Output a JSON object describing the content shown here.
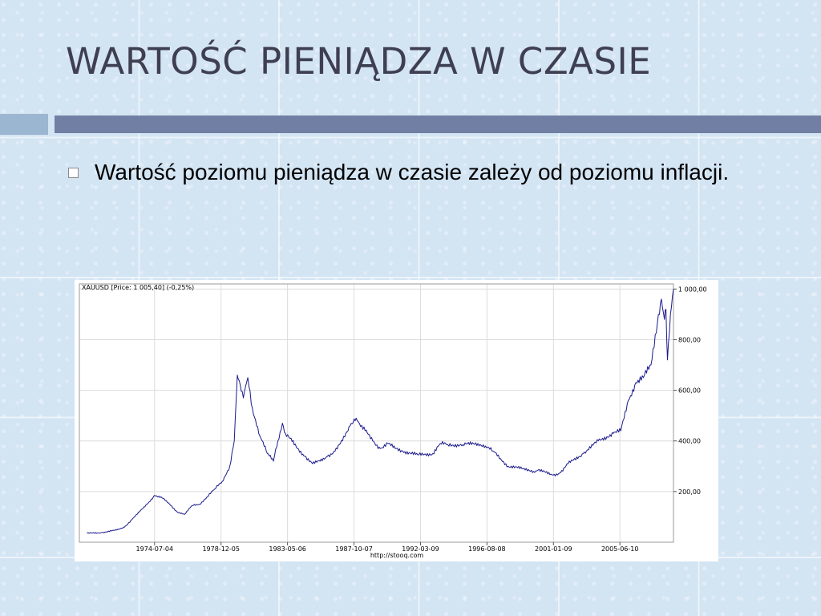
{
  "slide": {
    "title": "WARTOŚĆ PIENIĄDZA W CZASIE",
    "bullet": "Wartość poziomu pieniądza w czasie zależy od poziomu inflacji."
  },
  "colors": {
    "title": "#3f3f52",
    "accent_bar": "#707fa3",
    "accent_bar_light": "#9bb6d0",
    "line": "#1a1a8c",
    "grid": "#dcdcdc"
  },
  "chart_data": {
    "type": "line",
    "legend": "XAUUSD [Price: 1 005,40] (-0,25%)",
    "source": "http://stooq.com",
    "grid": true,
    "y_axis_side": "right",
    "ylim": [
      0,
      1020
    ],
    "yticks": [
      200,
      400,
      600,
      800,
      1000
    ],
    "ytick_labels": [
      "200,00",
      "400,00",
      "600,00",
      "800,00",
      "1 000,00"
    ],
    "xlim": [
      1969.5,
      2009.0
    ],
    "xticks": [
      1974.5,
      1978.92,
      1983.34,
      1987.76,
      1992.18,
      1996.6,
      2001.02,
      2005.44
    ],
    "xtick_labels": [
      "1974-07-04",
      "1978-12-05",
      "1983-05-06",
      "1987-10-07",
      "1992-03-09",
      "1996-08-08",
      "2001-01-09",
      "2005-06-10"
    ],
    "series": [
      {
        "x": [
          1970.0,
          1971.0,
          1972.0,
          1972.5,
          1973.0,
          1973.5,
          1974.0,
          1974.5,
          1975.0,
          1975.5,
          1976.0,
          1976.5,
          1977.0,
          1977.5,
          1978.0,
          1978.5,
          1979.0,
          1979.5,
          1979.8,
          1980.0,
          1980.2,
          1980.4,
          1980.7,
          1981.0,
          1981.5,
          1982.0,
          1982.4,
          1982.7,
          1983.0,
          1983.2,
          1983.5,
          1984.0,
          1984.5,
          1985.0,
          1985.5,
          1986.0,
          1986.5,
          1987.0,
          1987.5,
          1987.9,
          1988.5,
          1989.0,
          1989.5,
          1990.0,
          1990.5,
          1991.0,
          1992.0,
          1993.0,
          1993.5,
          1994.0,
          1995.0,
          1996.0,
          1996.5,
          1997.0,
          1997.5,
          1998.0,
          1999.0,
          1999.7,
          2000.0,
          2001.0,
          2001.5,
          2002.0,
          2003.0,
          2004.0,
          2005.0,
          2005.5,
          2006.0,
          2006.5,
          2007.0,
          2007.5,
          2008.0,
          2008.2,
          2008.4,
          2008.5,
          2008.6,
          2008.8,
          2009.0
        ],
        "y": [
          35,
          38,
          48,
          60,
          90,
          120,
          150,
          185,
          175,
          150,
          120,
          110,
          145,
          150,
          180,
          210,
          240,
          300,
          400,
          660,
          620,
          570,
          650,
          530,
          420,
          350,
          320,
          400,
          470,
          430,
          410,
          370,
          340,
          310,
          320,
          340,
          360,
          400,
          460,
          490,
          440,
          400,
          370,
          390,
          370,
          360,
          345,
          350,
          390,
          385,
          385,
          390,
          380,
          360,
          330,
          300,
          290,
          280,
          285,
          265,
          275,
          310,
          350,
          400,
          430,
          440,
          560,
          630,
          650,
          700,
          900,
          960,
          880,
          920,
          720,
          900,
          1000
        ]
      }
    ]
  }
}
